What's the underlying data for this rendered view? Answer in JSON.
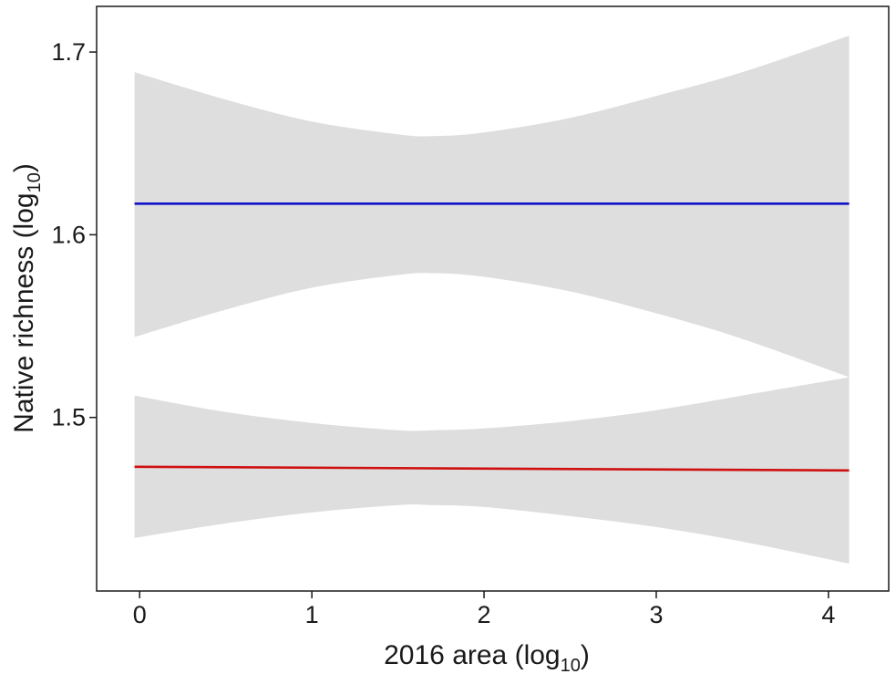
{
  "chart_data": {
    "type": "line",
    "xlabel": {
      "main": "2016 area (log",
      "sub": "10",
      "tail": ")"
    },
    "ylabel": {
      "main": "Native richness (log",
      "sub": "10",
      "tail": ")"
    },
    "xlim": [
      -0.25,
      4.35
    ],
    "ylim": [
      1.405,
      1.725
    ],
    "xticks": [
      0,
      1,
      2,
      3,
      4
    ],
    "xtick_labels": [
      "0",
      "1",
      "2",
      "3",
      "4"
    ],
    "yticks": [
      1.5,
      1.6,
      1.7
    ],
    "ytick_labels": [
      "1.5",
      "1.6",
      "1.7"
    ],
    "grid": false,
    "series": [
      {
        "color": "#1010c8",
        "x": [
          -0.03,
          4.12
        ],
        "y": [
          1.617,
          1.617
        ],
        "band": {
          "x": [
            -0.03,
            0.5,
            1.0,
            1.5,
            1.7,
            2.0,
            2.5,
            3.0,
            3.5,
            4.12
          ],
          "upper": [
            1.689,
            1.674,
            1.662,
            1.655,
            1.654,
            1.656,
            1.664,
            1.676,
            1.689,
            1.709
          ],
          "lower": [
            1.544,
            1.559,
            1.571,
            1.578,
            1.579,
            1.577,
            1.569,
            1.557,
            1.543,
            1.522
          ]
        }
      },
      {
        "color": "#d01010",
        "x": [
          -0.03,
          4.12
        ],
        "y": [
          1.473,
          1.471
        ],
        "band": {
          "x": [
            -0.03,
            0.5,
            1.0,
            1.5,
            1.7,
            2.0,
            2.5,
            3.0,
            3.5,
            4.12
          ],
          "upper": [
            1.512,
            1.503,
            1.497,
            1.493,
            1.493,
            1.494,
            1.498,
            1.504,
            1.512,
            1.522
          ],
          "lower": [
            1.434,
            1.442,
            1.448,
            1.452,
            1.452,
            1.451,
            1.446,
            1.44,
            1.432,
            1.42
          ]
        }
      }
    ]
  }
}
